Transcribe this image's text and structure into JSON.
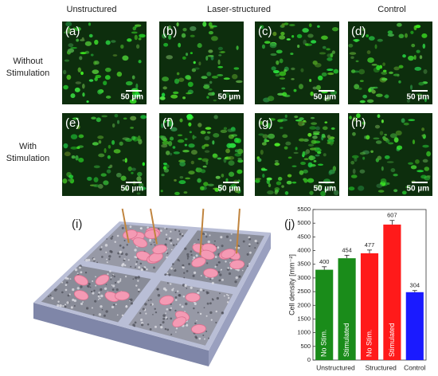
{
  "header": {
    "columns": [
      "Unstructured",
      "Laser-structured",
      "Control"
    ],
    "rows": [
      [
        "Without",
        "Stimulation"
      ],
      [
        "With",
        "Stimulation"
      ]
    ]
  },
  "panels": [
    {
      "label": "(a)",
      "scale": "50 µm"
    },
    {
      "label": "(b)",
      "scale": "50 µm"
    },
    {
      "label": "(c)",
      "scale": "50 µm"
    },
    {
      "label": "(d)",
      "scale": "50 µm"
    },
    {
      "label": "(e)",
      "scale": "50 µm"
    },
    {
      "label": "(f)",
      "scale": "50 µm"
    },
    {
      "label": "(g)",
      "scale": "50 µm"
    },
    {
      "label": "(h)",
      "scale": "50 µm"
    }
  ],
  "schematic": {
    "label": "(i)"
  },
  "chart_data": {
    "type": "bar",
    "label": "(j)",
    "y_label": "Cell density [mm⁻²]",
    "categories": [
      "No Stim.",
      "Stimulated",
      "No Stim.",
      "Stimulated",
      null
    ],
    "groups": [
      "Unstructured",
      "Structured",
      "Control"
    ],
    "values": [
      3300,
      3720,
      3900,
      4950,
      2480
    ],
    "errors": [
      110,
      110,
      120,
      150,
      60
    ],
    "annotations": [
      "400",
      "454",
      "477",
      "607",
      "304"
    ],
    "colors": [
      "#1a8c1a",
      "#1a8c1a",
      "#ff1a1a",
      "#ff1a1a",
      "#1a1aff"
    ],
    "ylim": [
      0,
      5500
    ],
    "yticks": [
      0,
      500,
      1000,
      1500,
      2000,
      2500,
      3000,
      3500,
      4000,
      4500,
      5000,
      5500
    ]
  }
}
